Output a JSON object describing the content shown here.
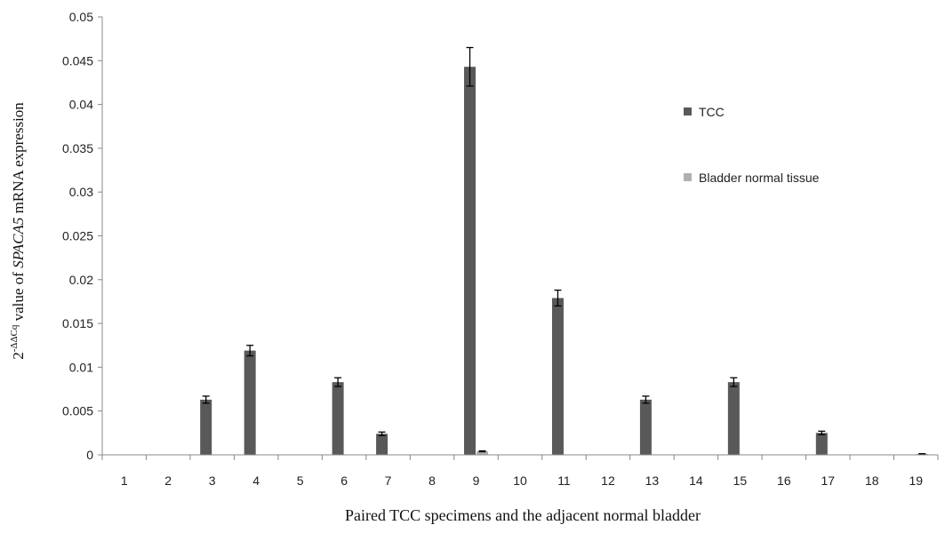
{
  "chart_data": {
    "type": "bar",
    "categories": [
      "1",
      "2",
      "3",
      "4",
      "5",
      "6",
      "7",
      "8",
      "9",
      "10",
      "11",
      "12",
      "13",
      "14",
      "15",
      "16",
      "17",
      "18",
      "19"
    ],
    "series": [
      {
        "name": "TCC",
        "color": "#595959",
        "values": [
          0,
          0,
          0.0063,
          0.0119,
          0,
          0.0083,
          0.0024,
          0,
          0.0443,
          0,
          0.0179,
          0,
          0.0063,
          0,
          0.0083,
          0,
          0.0025,
          0,
          0
        ],
        "errors": [
          0,
          0,
          0.0004,
          0.0006,
          0,
          0.0005,
          0.0002,
          0,
          0.0022,
          0,
          0.0009,
          0,
          0.0004,
          0,
          0.0005,
          0,
          0.0002,
          0,
          0
        ]
      },
      {
        "name": "Bladder normal tissue",
        "color": "#b0b0b0",
        "values": [
          0,
          0,
          0,
          0,
          0,
          0,
          0,
          0,
          0.0004,
          0,
          0,
          0,
          0,
          0,
          0,
          0,
          0,
          0,
          0.0001
        ],
        "errors": [
          0,
          0,
          0,
          0,
          0,
          0,
          0,
          0,
          5e-05,
          0,
          0,
          0,
          0,
          0,
          0,
          0,
          0,
          0,
          3e-05
        ]
      }
    ],
    "yticks": [
      "0",
      "0.005",
      "0.01",
      "0.015",
      "0.02",
      "0.025",
      "0.03",
      "0.035",
      "0.04",
      "0.045",
      "0.05"
    ],
    "ylim": [
      0,
      0.05
    ],
    "ylabel": {
      "prefix": "2",
      "superscript": "-ΔΔCq",
      "middle": " value of ",
      "gene": "SPACA5",
      "suffix": " mRNA expression"
    },
    "xlabel": "Paired TCC specimens and the adjacent normal bladder",
    "grid": false,
    "legend_position": "right"
  }
}
